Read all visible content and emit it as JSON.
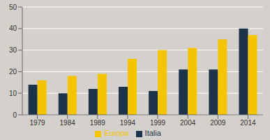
{
  "chart_data": {
    "type": "bar",
    "categories": [
      "1979",
      "1984",
      "1989",
      "1994",
      "1999",
      "2004",
      "2009",
      "2014"
    ],
    "series": [
      {
        "name": "Italia",
        "color": "#1c3349",
        "values": [
          14,
          10,
          12,
          13,
          11,
          21,
          21,
          40
        ]
      },
      {
        "name": "Europa",
        "color": "#f5c400",
        "values": [
          16,
          18,
          19,
          26,
          30,
          31,
          35,
          37
        ]
      }
    ],
    "ylim": [
      0,
      50
    ],
    "yticks": [
      0,
      10,
      20,
      30,
      40,
      50
    ],
    "grid": true,
    "legend": "bottom"
  }
}
